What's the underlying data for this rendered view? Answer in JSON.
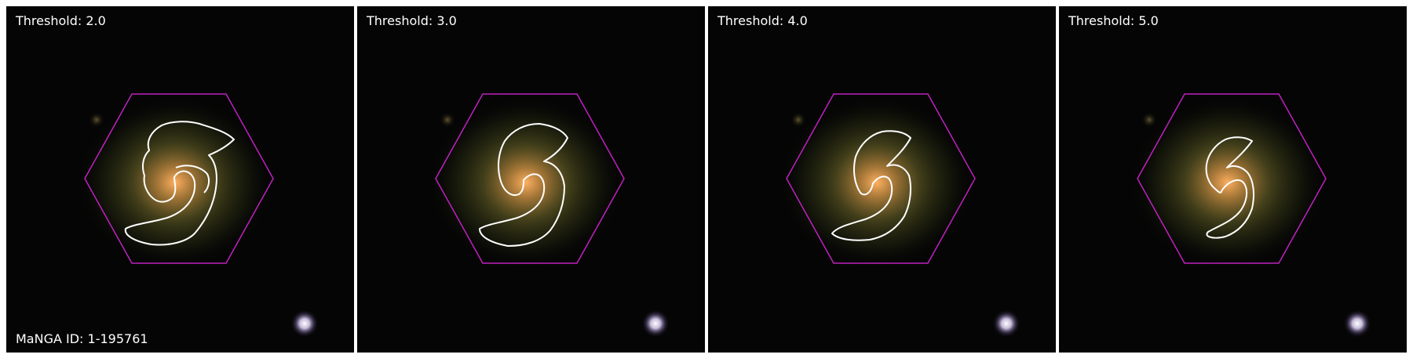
{
  "panels": [
    {
      "threshold_label": "Threshold: 2.0",
      "id_label": "MaNGA ID: 1-195761"
    },
    {
      "threshold_label": "Threshold: 3.0"
    },
    {
      "threshold_label": "Threshold: 4.0"
    },
    {
      "threshold_label": "Threshold: 5.0"
    }
  ],
  "colors": {
    "background": "#050505",
    "hexagon": "#c020c0",
    "contour": "#ffffff",
    "galaxy_core": "#ffb060",
    "star": "#f0e8ff",
    "label_text": "#ffffff"
  }
}
